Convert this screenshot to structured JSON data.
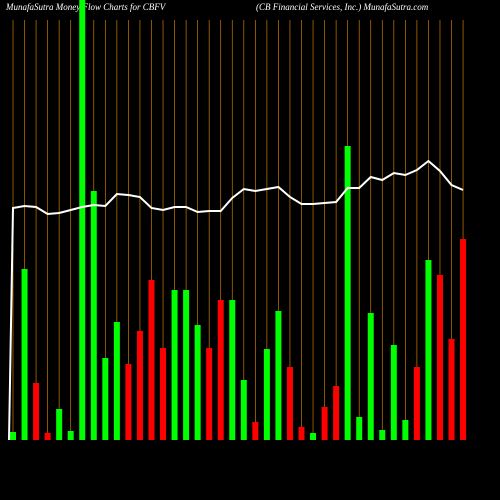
{
  "chart_data": {
    "type": "bar",
    "title": "MunafaSutra  Money Flow  Charts for CBFV",
    "subtitle": "(CB Financial Services,  Inc.) MunafaSutra.com",
    "categories": [
      null,
      null,
      null,
      null,
      null,
      null,
      null,
      null,
      null,
      null,
      null,
      null,
      null,
      null,
      null,
      null,
      null,
      null,
      null,
      null,
      null,
      null,
      null,
      null,
      null,
      null,
      null,
      null,
      null,
      null,
      null,
      null,
      null,
      null,
      null,
      null,
      null,
      null,
      null,
      null
    ],
    "values": [
      8,
      171,
      57,
      7,
      31,
      9,
      460,
      249,
      82,
      118,
      76,
      109,
      160,
      92,
      150,
      150,
      115,
      92,
      140,
      140,
      60,
      18,
      91,
      129,
      73,
      13,
      7,
      33,
      54,
      294,
      23,
      127,
      10,
      95,
      20,
      73,
      180,
      165,
      101,
      201
    ],
    "colors": [
      "#00ff00",
      "#00ff00",
      "#ff0000",
      "#ff0000",
      "#00ff00",
      "#00ff00",
      "#00ff00",
      "#00ff00",
      "#00ff00",
      "#00ff00",
      "#ff0000",
      "#ff0000",
      "#ff0000",
      "#ff0000",
      "#00ff00",
      "#00ff00",
      "#00ff00",
      "#ff0000",
      "#ff0000",
      "#00ff00",
      "#00ff00",
      "#ff0000",
      "#00ff00",
      "#00ff00",
      "#ff0000",
      "#ff0000",
      "#00ff00",
      "#ff0000",
      "#ff0000",
      "#00ff00",
      "#00ff00",
      "#00ff00",
      "#00ff00",
      "#00ff00",
      "#00ff00",
      "#ff0000",
      "#00ff00",
      "#ff0000",
      "#ff0000",
      "#ff0000"
    ],
    "line": {
      "color": "#ffffff",
      "values": [
        232,
        234,
        233,
        226,
        227,
        230,
        233,
        235,
        234,
        246,
        245,
        243,
        232,
        230,
        233,
        233,
        228,
        229,
        229,
        242,
        251,
        249,
        251,
        253,
        243,
        236,
        236,
        237,
        238,
        252,
        252,
        263,
        260,
        267,
        265,
        270,
        279,
        269,
        255,
        250
      ]
    },
    "grid_color": "#cc7a00",
    "ylim": [
      0,
      440
    ]
  }
}
